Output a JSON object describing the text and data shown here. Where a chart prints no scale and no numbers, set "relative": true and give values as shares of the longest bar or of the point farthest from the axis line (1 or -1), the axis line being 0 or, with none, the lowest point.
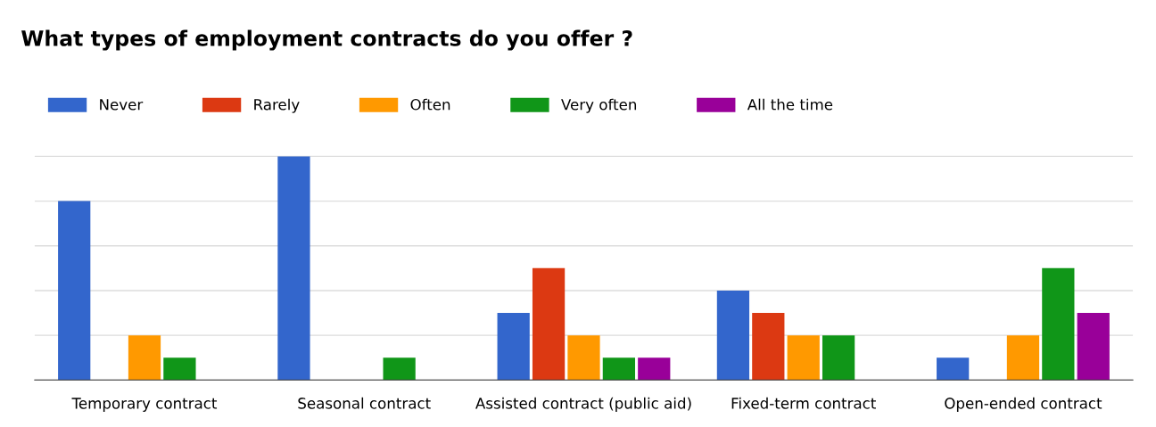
{
  "chart_data": {
    "type": "bar",
    "title": "What types of employment contracts do you offer ?",
    "relative": true,
    "grid": "y",
    "legend": "top left",
    "categories": [
      "Temporary contract",
      "Seasonal contract",
      "Assisted contract (public aid)",
      "Fixed-term contract",
      "Open-ended contract"
    ],
    "series": [
      {
        "name": "Never",
        "color": "#3366cc",
        "values": [
          0.8,
          1.0,
          0.3,
          0.4,
          0.1
        ]
      },
      {
        "name": "Rarely",
        "color": "#dc3912",
        "values": [
          0,
          0,
          0.5,
          0.3,
          0
        ]
      },
      {
        "name": "Often",
        "color": "#ff9900",
        "values": [
          0.2,
          0,
          0.2,
          0.2,
          0.2
        ]
      },
      {
        "name": "Very often",
        "color": "#109618",
        "values": [
          0.1,
          0.1,
          0.1,
          0.2,
          0.5
        ]
      },
      {
        "name": "All the time",
        "color": "#990099",
        "values": [
          0,
          0,
          0.1,
          0,
          0.3
        ]
      }
    ]
  }
}
